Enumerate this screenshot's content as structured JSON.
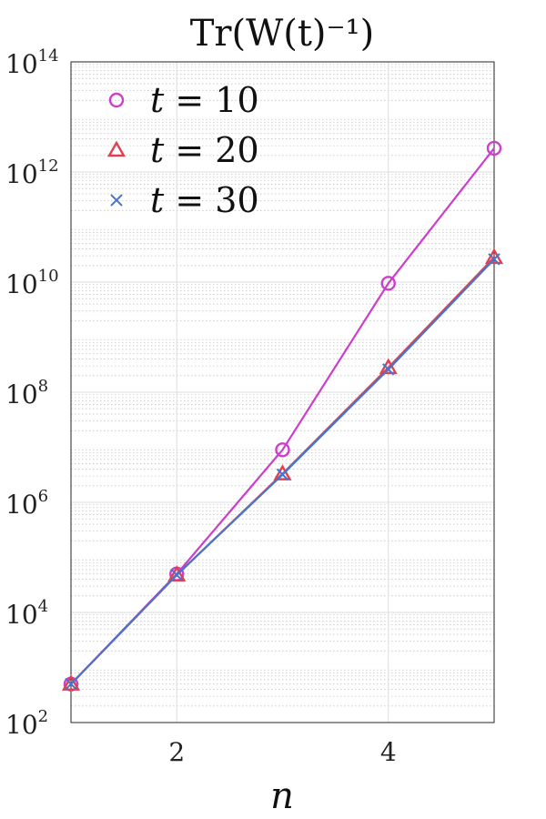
{
  "chart_data": {
    "type": "scatter",
    "title": "Tr(W(t)⁻¹)",
    "xlabel": "n",
    "ylabel": "",
    "y_scale": "log",
    "xlim": [
      1,
      5
    ],
    "ylim": [
      100,
      100000000000000
    ],
    "x_ticks": [
      2,
      4
    ],
    "y_ticks": [
      {
        "value": 100,
        "base": "10",
        "exp": "2"
      },
      {
        "value": 10000,
        "base": "10",
        "exp": "4"
      },
      {
        "value": 1000000,
        "base": "10",
        "exp": "6"
      },
      {
        "value": 100000000,
        "base": "10",
        "exp": "8"
      },
      {
        "value": 10000000000,
        "base": "10",
        "exp": "10"
      },
      {
        "value": 1000000000000,
        "base": "10",
        "exp": "12"
      },
      {
        "value": 100000000000000,
        "base": "10",
        "exp": "14"
      }
    ],
    "grid": true,
    "legend_position": "top-left",
    "series": [
      {
        "name": "t = 10",
        "var": "t",
        "eq": "= 10",
        "marker": "circle",
        "color": "#cc3fcc",
        "x": [
          1,
          2,
          3,
          4,
          5
        ],
        "y": [
          500,
          50000,
          9000000,
          9500000000,
          2700000000000
        ]
      },
      {
        "name": "t = 20",
        "var": "t",
        "eq": "= 20",
        "marker": "triangle",
        "color": "#e0404f",
        "x": [
          1,
          2,
          3,
          4,
          5
        ],
        "y": [
          500,
          48000,
          3300000,
          280000000,
          28000000000
        ]
      },
      {
        "name": "t = 30",
        "var": "t",
        "eq": "= 30",
        "marker": "x",
        "color": "#4a74cc",
        "x": [
          1,
          2,
          3,
          4,
          5
        ],
        "y": [
          500,
          48000,
          3200000,
          260000000,
          26000000000
        ]
      }
    ]
  }
}
